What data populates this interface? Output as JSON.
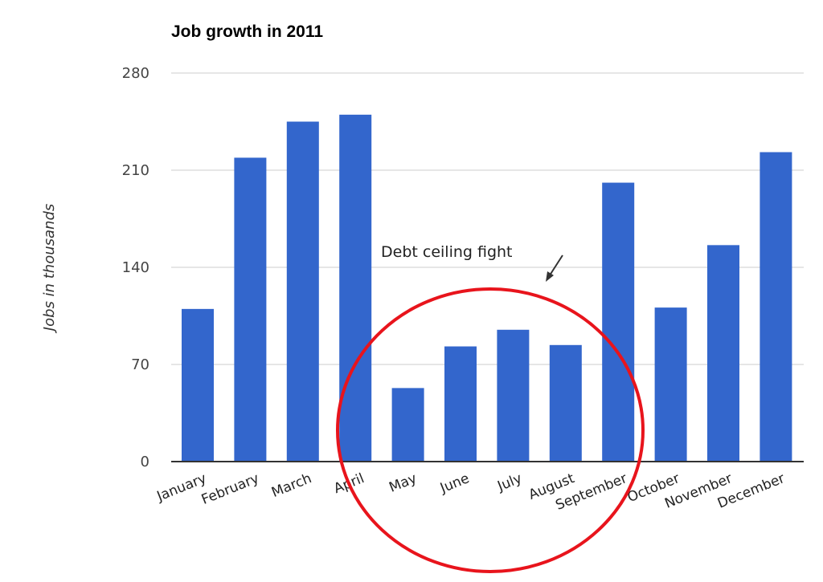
{
  "chart_data": {
    "type": "bar",
    "title": "Job growth in 2011",
    "xlabel": "",
    "ylabel": "Jobs in thousands",
    "ylim": [
      0,
      280
    ],
    "yticks": [
      "0",
      "70",
      "140",
      "210",
      "280"
    ],
    "grid": true,
    "categories": [
      "January",
      "February",
      "March",
      "April",
      "May",
      "June",
      "July",
      "August",
      "September",
      "October",
      "November",
      "December"
    ],
    "values": [
      110,
      219,
      245,
      250,
      53,
      83,
      95,
      84,
      201,
      111,
      156,
      223
    ],
    "bar_color": "#3366cc",
    "annotation": {
      "text": "Debt ceiling fight",
      "highlighted_categories": [
        "May",
        "June",
        "July",
        "August"
      ],
      "circle_color": "#e8141c"
    }
  }
}
